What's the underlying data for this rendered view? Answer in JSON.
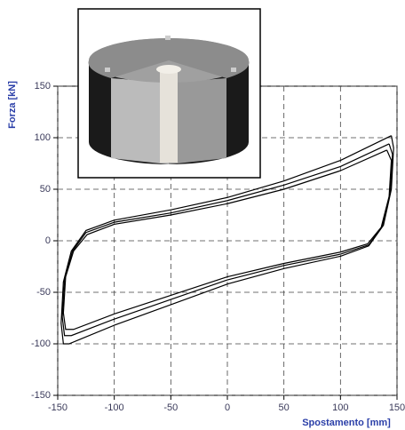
{
  "chart_data": {
    "type": "line",
    "x_label": "Spostamento [mm]",
    "y_label": "Forza [kN]",
    "xlim": [
      -150,
      150
    ],
    "xticks": [
      -150,
      -100,
      -50,
      0,
      50,
      100,
      150
    ],
    "ylim": [
      -150,
      150
    ],
    "yticks": [
      -150,
      -100,
      -50,
      0,
      50,
      100,
      150
    ],
    "grid": true,
    "series": [
      {
        "color": "#000000",
        "x": [
          145,
          100,
          50,
          0,
          -50,
          -100,
          -125,
          -138,
          -145,
          -147,
          -145,
          -140,
          -100,
          -50,
          0,
          50,
          100,
          125,
          138,
          145,
          147,
          145
        ],
        "values": [
          102,
          78,
          58,
          42,
          30,
          20,
          10,
          -10,
          -40,
          -80,
          -100,
          -100,
          -82,
          -62,
          -42,
          -27,
          -15,
          -5,
          15,
          50,
          90,
          102
        ]
      },
      {
        "color": "#000000",
        "x": [
          143,
          100,
          50,
          0,
          -50,
          -100,
          -125,
          -137,
          -144,
          -146,
          -144,
          -138,
          -100,
          -50,
          0,
          50,
          100,
          125,
          137,
          144,
          146,
          143
        ],
        "values": [
          94,
          72,
          54,
          39,
          27,
          18,
          8,
          -10,
          -38,
          -74,
          -92,
          -92,
          -76,
          -57,
          -38,
          -24,
          -13,
          -4,
          14,
          46,
          84,
          94
        ]
      },
      {
        "color": "#000000",
        "x": [
          141,
          100,
          50,
          0,
          -50,
          -100,
          -124,
          -136,
          -143,
          -145,
          -143,
          -136,
          -100,
          -50,
          0,
          50,
          100,
          124,
          136,
          143,
          145,
          141
        ],
        "values": [
          88,
          68,
          50,
          36,
          25,
          16,
          6,
          -10,
          -35,
          -70,
          -86,
          -86,
          -71,
          -53,
          -35,
          -22,
          -11,
          -3,
          13,
          43,
          78,
          88
        ]
      }
    ]
  }
}
